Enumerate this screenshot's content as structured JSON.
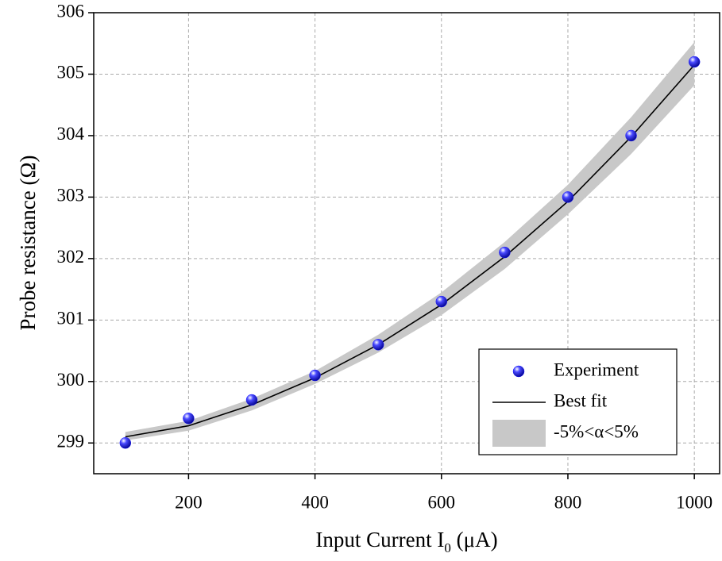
{
  "chart_data": {
    "type": "scatter",
    "ylabel": "Probe resistance (Ω)",
    "xlabel_parts": [
      "Input Current I",
      "0",
      " (μA)"
    ],
    "xlim": [
      50,
      1040
    ],
    "ylim": [
      298.5,
      306
    ],
    "xticks": [
      200,
      400,
      600,
      800,
      1000
    ],
    "yticks": [
      299,
      300,
      301,
      302,
      303,
      304,
      305,
      306
    ],
    "grid": true,
    "legend": "lower-right",
    "series": [
      {
        "name": "-5%<α<5%",
        "type": "band",
        "color": "#c8c8c8",
        "x": [
          100,
          200,
          300,
          400,
          500,
          600,
          700,
          800,
          900,
          1000
        ],
        "upper": [
          299.18,
          299.36,
          299.72,
          300.17,
          300.76,
          301.45,
          302.27,
          303.2,
          304.3,
          305.52
        ],
        "lower": [
          299.04,
          299.2,
          299.53,
          299.96,
          300.47,
          301.08,
          301.83,
          302.72,
          303.7,
          304.82
        ]
      },
      {
        "name": "Best fit",
        "type": "line",
        "color": "#000000",
        "x": [
          100,
          200,
          300,
          400,
          500,
          600,
          700,
          800,
          900,
          1000
        ],
        "values": [
          299.1,
          299.28,
          299.62,
          300.06,
          300.6,
          301.25,
          302.03,
          302.93,
          303.98,
          305.15
        ]
      },
      {
        "name": "Experiment",
        "type": "scatter",
        "color": "#1a1aff",
        "x": [
          100,
          200,
          300,
          400,
          500,
          600,
          700,
          800,
          900,
          1000
        ],
        "values": [
          299.0,
          299.4,
          299.7,
          300.1,
          300.6,
          301.3,
          302.1,
          303.0,
          304.0,
          305.2
        ]
      }
    ]
  }
}
